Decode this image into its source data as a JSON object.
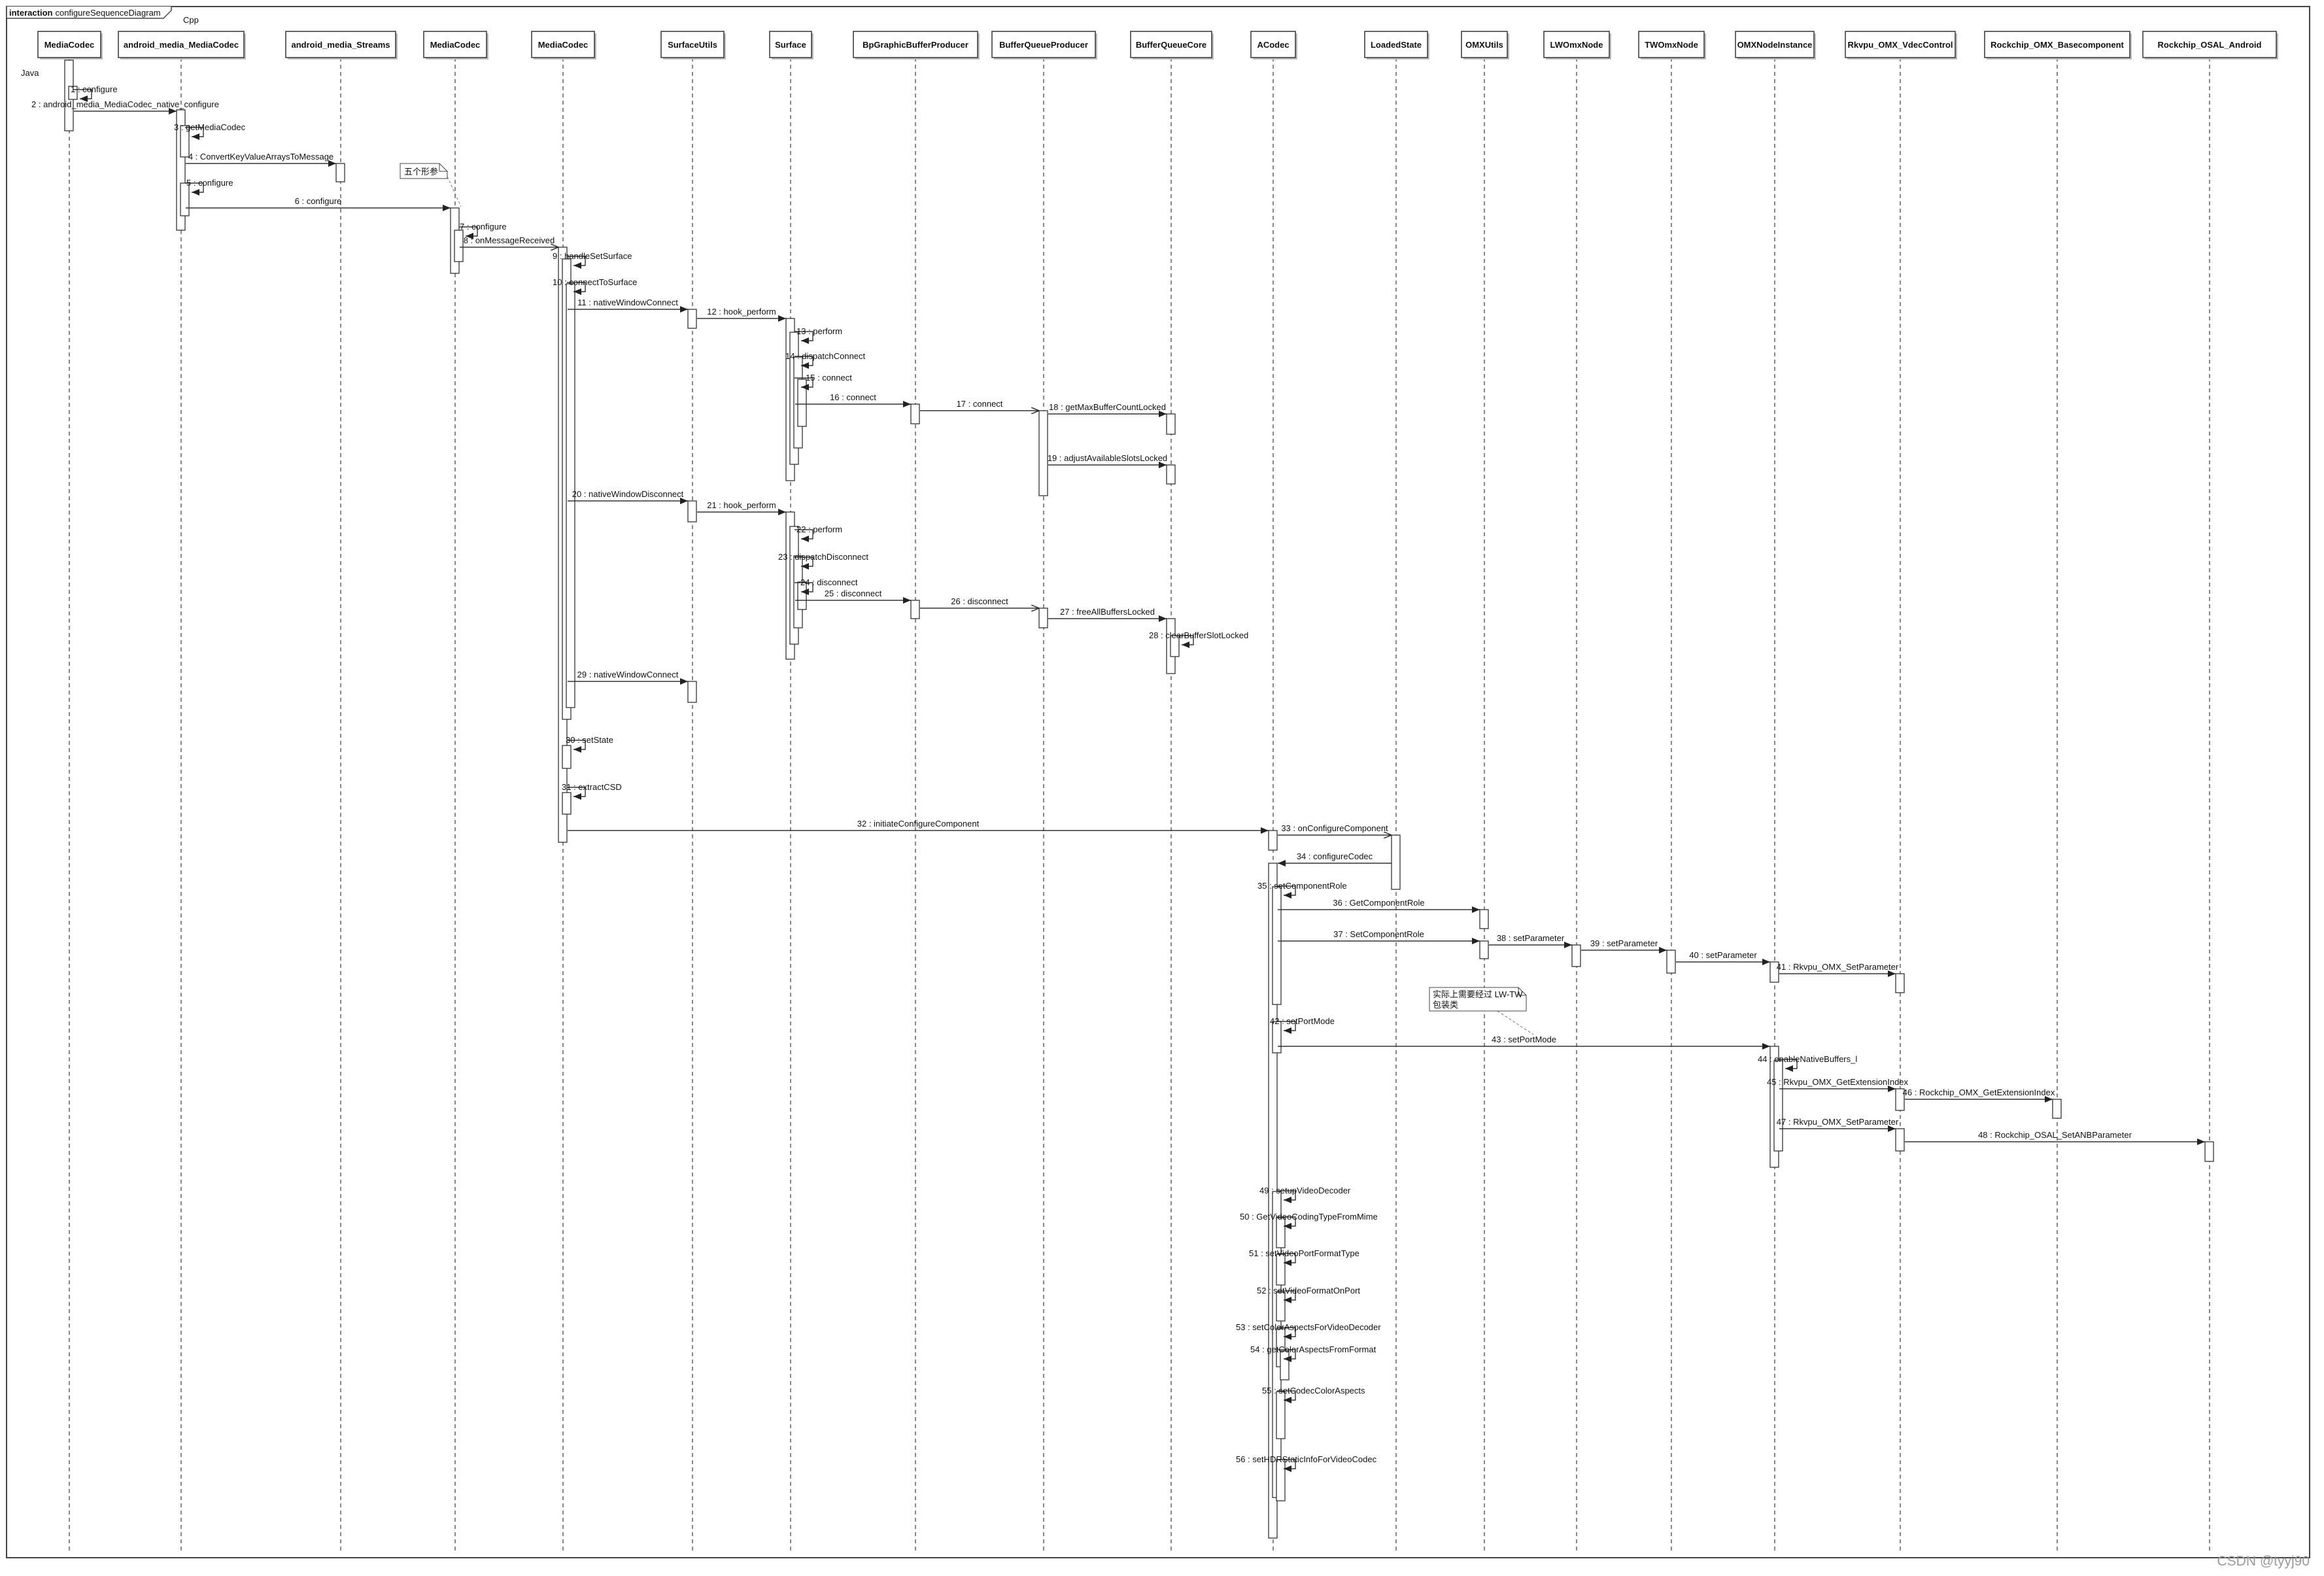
{
  "frame": {
    "keyword": "interaction",
    "name": "configureSequenceDiagram"
  },
  "group_labels": [
    "Java",
    "Cpp"
  ],
  "participants": [
    "MediaCodec",
    "android_media_MediaCodec",
    "android_media_Streams",
    "MediaCodec",
    "MediaCodec",
    "SurfaceUtils",
    "Surface",
    "BpGraphicBufferProducer",
    "BufferQueueProducer",
    "BufferQueueCore",
    "ACodec",
    "LoadedState",
    "OMXUtils",
    "LWOmxNode",
    "TWOmxNode",
    "OMXNodeInstance",
    "Rkvpu_OMX_VdecControl",
    "Rockchip_OMX_Basecomponent",
    "Rockchip_OSAL_Android"
  ],
  "messages": [
    {
      "n": 1,
      "label": "configure",
      "from": 0,
      "to": 0
    },
    {
      "n": 2,
      "label": "android_media_MediaCodec_native_configure",
      "from": 0,
      "to": 1
    },
    {
      "n": 3,
      "label": "getMediaCodec",
      "from": 1,
      "to": 1
    },
    {
      "n": 4,
      "label": "ConvertKeyValueArraysToMessage",
      "from": 1,
      "to": 2
    },
    {
      "n": 5,
      "label": "configure",
      "from": 1,
      "to": 1
    },
    {
      "n": 6,
      "label": "configure",
      "from": 1,
      "to": 3
    },
    {
      "n": 7,
      "label": "configure",
      "from": 3,
      "to": 3
    },
    {
      "n": 8,
      "label": "onMessageReceived",
      "from": 3,
      "to": 4,
      "async": true
    },
    {
      "n": 9,
      "label": "handleSetSurface",
      "from": 4,
      "to": 4
    },
    {
      "n": 10,
      "label": "connectToSurface",
      "from": 4,
      "to": 4
    },
    {
      "n": 11,
      "label": "nativeWindowConnect",
      "from": 4,
      "to": 5
    },
    {
      "n": 12,
      "label": "hook_perform",
      "from": 5,
      "to": 6
    },
    {
      "n": 13,
      "label": "perform",
      "from": 6,
      "to": 6
    },
    {
      "n": 14,
      "label": "dispatchConnect",
      "from": 6,
      "to": 6
    },
    {
      "n": 15,
      "label": "connect",
      "from": 6,
      "to": 6
    },
    {
      "n": 16,
      "label": "connect",
      "from": 6,
      "to": 7
    },
    {
      "n": 17,
      "label": "connect",
      "from": 7,
      "to": 8,
      "async": true
    },
    {
      "n": 18,
      "label": "getMaxBufferCountLocked",
      "from": 8,
      "to": 9
    },
    {
      "n": 19,
      "label": "adjustAvailableSlotsLocked",
      "from": 8,
      "to": 9
    },
    {
      "n": 20,
      "label": "nativeWindowDisconnect",
      "from": 4,
      "to": 5
    },
    {
      "n": 21,
      "label": "hook_perform",
      "from": 5,
      "to": 6
    },
    {
      "n": 22,
      "label": "perform",
      "from": 6,
      "to": 6
    },
    {
      "n": 23,
      "label": "dispatchDisconnect",
      "from": 6,
      "to": 6
    },
    {
      "n": 24,
      "label": "disconnect",
      "from": 6,
      "to": 6
    },
    {
      "n": 25,
      "label": "disconnect",
      "from": 6,
      "to": 7
    },
    {
      "n": 26,
      "label": "disconnect",
      "from": 7,
      "to": 8,
      "async": true
    },
    {
      "n": 27,
      "label": "freeAllBuffersLocked",
      "from": 8,
      "to": 9
    },
    {
      "n": 28,
      "label": "clearBufferSlotLocked",
      "from": 9,
      "to": 9
    },
    {
      "n": 29,
      "label": "nativeWindowConnect",
      "from": 4,
      "to": 5
    },
    {
      "n": 30,
      "label": "setState",
      "from": 4,
      "to": 4
    },
    {
      "n": 31,
      "label": "extractCSD",
      "from": 4,
      "to": 4
    },
    {
      "n": 32,
      "label": "initiateConfigureComponent",
      "from": 4,
      "to": 10
    },
    {
      "n": 33,
      "label": "onConfigureComponent",
      "from": 10,
      "to": 11,
      "async": true
    },
    {
      "n": 34,
      "label": "configureCodec",
      "from": 11,
      "to": 10
    },
    {
      "n": 35,
      "label": "setComponentRole",
      "from": 10,
      "to": 10
    },
    {
      "n": 36,
      "label": "GetComponentRole",
      "from": 10,
      "to": 12
    },
    {
      "n": 37,
      "label": "SetComponentRole",
      "from": 10,
      "to": 12
    },
    {
      "n": 38,
      "label": "setParameter",
      "from": 12,
      "to": 13
    },
    {
      "n": 39,
      "label": "setParameter",
      "from": 13,
      "to": 14
    },
    {
      "n": 40,
      "label": "setParameter",
      "from": 14,
      "to": 15
    },
    {
      "n": 41,
      "label": "Rkvpu_OMX_SetParameter",
      "from": 15,
      "to": 16
    },
    {
      "n": 42,
      "label": "setPortMode",
      "from": 10,
      "to": 10
    },
    {
      "n": 43,
      "label": "setPortMode",
      "from": 10,
      "to": 15
    },
    {
      "n": 44,
      "label": "enableNativeBuffers_l",
      "from": 15,
      "to": 15
    },
    {
      "n": 45,
      "label": "Rkvpu_OMX_GetExtensionIndex",
      "from": 15,
      "to": 16
    },
    {
      "n": 46,
      "label": "Rockchip_OMX_GetExtensionIndex",
      "from": 16,
      "to": 17
    },
    {
      "n": 47,
      "label": "Rkvpu_OMX_SetParameter",
      "from": 15,
      "to": 16
    },
    {
      "n": 48,
      "label": "Rockchip_OSAL_SetANBParameter",
      "from": 16,
      "to": 18
    },
    {
      "n": 49,
      "label": "setupVideoDecoder",
      "from": 10,
      "to": 10
    },
    {
      "n": 50,
      "label": "GetVideoCodingTypeFromMime",
      "from": 10,
      "to": 10
    },
    {
      "n": 51,
      "label": "setVideoPortFormatType",
      "from": 10,
      "to": 10
    },
    {
      "n": 52,
      "label": "setVideoFormatOnPort",
      "from": 10,
      "to": 10
    },
    {
      "n": 53,
      "label": "setColorAspectsForVideoDecoder",
      "from": 10,
      "to": 10
    },
    {
      "n": 54,
      "label": "getColorAspectsFromFormat",
      "from": 10,
      "to": 10
    },
    {
      "n": 55,
      "label": "setCodecColorAspects",
      "from": 10,
      "to": 10
    },
    {
      "n": 56,
      "label": "setHDRStaticInfoForVideoCodec",
      "from": 10,
      "to": 10
    }
  ],
  "notes": [
    {
      "lines": [
        "五个形参"
      ]
    },
    {
      "lines": [
        "实际上需要经过 LW-TW",
        "包装类"
      ]
    }
  ],
  "watermark": "CSDN @tyyj90",
  "colors": {
    "line": "#333333",
    "lifeline": "#555555",
    "box": "#ffffff",
    "background": "#ffffff"
  }
}
